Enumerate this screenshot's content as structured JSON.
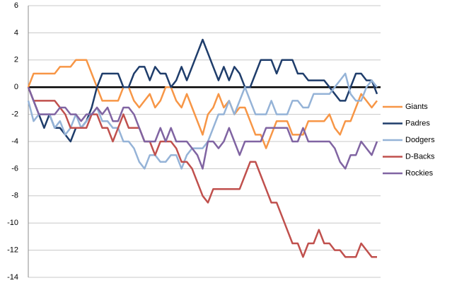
{
  "chart_data": {
    "type": "line",
    "categories": [
      null,
      null,
      null,
      null,
      null,
      null,
      null,
      null,
      null,
      null,
      null,
      null,
      null,
      null,
      null,
      null,
      null,
      null,
      null,
      null,
      null,
      null,
      null,
      null,
      null,
      null,
      null,
      null,
      null,
      null,
      null,
      null,
      null,
      null,
      null,
      null,
      null,
      null,
      null,
      null,
      null,
      null,
      null,
      null,
      null,
      null,
      null,
      null,
      null,
      null,
      null,
      null,
      null,
      null,
      null,
      null,
      null,
      null,
      null,
      null,
      null,
      null,
      null,
      null,
      null,
      null,
      null
    ],
    "series": [
      {
        "name": "Giants",
        "color": "#f79646",
        "values": [
          0,
          1,
          1,
          1,
          1,
          1,
          1.5,
          1.5,
          1.5,
          2,
          2,
          2,
          1,
          0,
          -1,
          -1,
          -1,
          -1,
          0,
          0,
          -1,
          -1.5,
          -1,
          -0.5,
          -1.5,
          -1,
          0,
          0,
          -1,
          -1.5,
          -0.5,
          -1.5,
          -2.5,
          -3.5,
          -2,
          -1.5,
          -0.5,
          -1.5,
          -1,
          -2,
          -1.5,
          -1.5,
          -2.5,
          -3.5,
          -3.5,
          -4.5,
          -3.5,
          -2.5,
          -2.5,
          -2.5,
          -3.5,
          -3.5,
          -3.5,
          -2.5,
          -2.5,
          -2.5,
          -2.5,
          -2,
          -3,
          -3.5,
          -2.5,
          -2.5,
          -1.5,
          -0.5,
          -1,
          -1.5,
          -1
        ]
      },
      {
        "name": "Padres",
        "color": "#1f3d6b",
        "values": [
          0,
          -1,
          -2,
          -3,
          -2,
          -3,
          -3,
          -3.5,
          -4,
          -3,
          -3,
          -2.5,
          -1.5,
          0,
          1,
          1,
          1,
          1,
          0,
          0,
          1,
          1.5,
          1.5,
          0.5,
          1.5,
          1,
          1,
          0,
          0.5,
          1.5,
          0.5,
          1.5,
          2.5,
          3.5,
          2.5,
          1.5,
          0.5,
          1.5,
          0.5,
          1.5,
          1,
          0,
          0,
          1,
          2,
          2,
          2,
          1,
          2,
          2,
          2,
          1,
          1,
          0.5,
          0.5,
          0.5,
          0.5,
          0,
          -0.5,
          -1,
          -1,
          0,
          1,
          1,
          0.5,
          0.5,
          -0.5
        ]
      },
      {
        "name": "Dodgers",
        "color": "#95b3d7",
        "values": [
          -1,
          -2.5,
          -2,
          -2,
          -2,
          -3,
          -2.5,
          -3.5,
          -3,
          -2,
          -3,
          -2.5,
          -2,
          -1.5,
          -2.5,
          -2.5,
          -3,
          -3,
          -4,
          -4,
          -4.5,
          -5.5,
          -6,
          -5,
          -5,
          -5.5,
          -5.5,
          -5,
          -5,
          -6,
          -5,
          -4.5,
          -4.5,
          -4.5,
          -4,
          -3,
          -2,
          -2,
          -1,
          -2,
          -1,
          0,
          -1,
          -2,
          -2,
          -2,
          -1,
          -2,
          -2,
          -2,
          -1,
          -1,
          -1.5,
          -1.5,
          -0.5,
          -0.5,
          -0.5,
          -0.5,
          0,
          0.5,
          1,
          -0.5,
          -1,
          -1,
          0,
          0.5,
          0
        ]
      },
      {
        "name": "D-Backs",
        "color": "#c0504d",
        "values": [
          0,
          -1,
          -1,
          -1,
          -1,
          -1,
          -1.5,
          -2,
          -3,
          -3,
          -3,
          -3,
          -2,
          -2,
          -3,
          -3,
          -4,
          -3,
          -2,
          -3,
          -3,
          -3,
          -4,
          -4,
          -5,
          -4,
          -4,
          -4,
          -4.5,
          -5.5,
          -5.5,
          -6,
          -7,
          -8,
          -8.5,
          -7.5,
          -7.5,
          -7.5,
          -7.5,
          -7.5,
          -7.5,
          -6.5,
          -5.5,
          -5.5,
          -6.5,
          -7.5,
          -8.5,
          -8.5,
          -9.5,
          -10.5,
          -11.5,
          -11.5,
          -12.5,
          -11.5,
          -11.5,
          -10.5,
          -11.5,
          -11.5,
          -12,
          -12,
          -12.5,
          -12.5,
          -12.5,
          -11.5,
          -12,
          -12.5,
          -12.5
        ]
      },
      {
        "name": "Rockies",
        "color": "#8064a2",
        "values": [
          0,
          -1,
          -2,
          -2,
          -2,
          -2,
          -1.5,
          -1.5,
          -2,
          -2,
          -2.5,
          -2,
          -2,
          -1.5,
          -2,
          -1.5,
          -2.5,
          -2.5,
          -1.5,
          -1.5,
          -2,
          -3,
          -4,
          -4,
          -4,
          -3,
          -4,
          -3,
          -4,
          -4,
          -4,
          -4.5,
          -5,
          -6,
          -4,
          -4,
          -4.5,
          -4,
          -3,
          -4,
          -5,
          -4,
          -4,
          -4,
          -4,
          -3,
          -3,
          -3,
          -3,
          -3,
          -4,
          -4,
          -3,
          -4,
          -4,
          -4,
          -4,
          -4,
          -4.5,
          -5.5,
          -6,
          -5,
          -5,
          -4,
          -4.5,
          -5,
          -4
        ]
      }
    ],
    "ylim": [
      -14,
      6
    ],
    "yticks": [
      6,
      4,
      2,
      0,
      -2,
      -4,
      -6,
      -8,
      -10,
      -12,
      -14
    ],
    "grid": true,
    "legend": "right"
  }
}
